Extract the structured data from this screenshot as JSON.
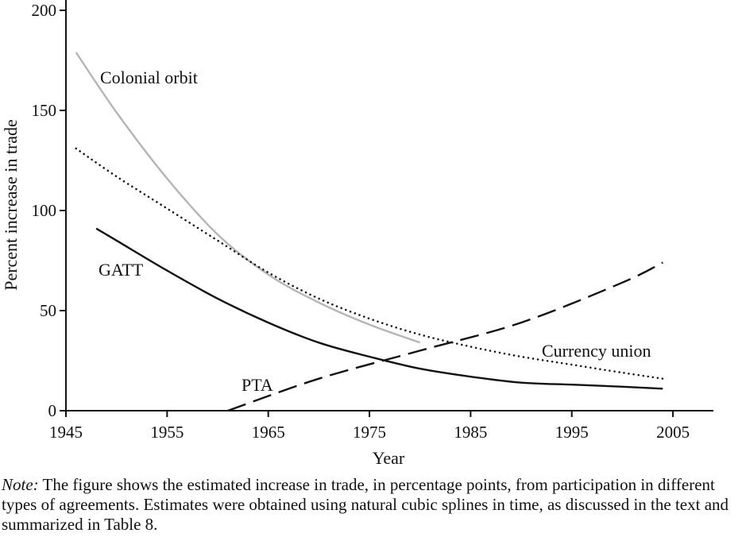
{
  "chart_data": {
    "type": "line",
    "title": "",
    "xlabel": "Year",
    "ylabel": "Percent increase in trade",
    "xlim": [
      1945,
      2009
    ],
    "ylim": [
      0,
      200
    ],
    "x_ticks": [
      1945,
      1955,
      1965,
      1975,
      1985,
      1995,
      2005
    ],
    "y_ticks": [
      0,
      50,
      100,
      150,
      200
    ],
    "grid": false,
    "series": [
      {
        "name": "Colonial orbit",
        "label": "Colonial orbit",
        "style": "solid",
        "color": "#b5b5b5",
        "x": [
          1946,
          1950,
          1955,
          1960,
          1965,
          1970,
          1975,
          1980
        ],
        "y": [
          179,
          149,
          116,
          88,
          68,
          54,
          43,
          34
        ]
      },
      {
        "name": "Currency union",
        "label": "Currency union",
        "style": "dotted",
        "color": "#111111",
        "x": [
          1946,
          1950,
          1955,
          1960,
          1965,
          1970,
          1975,
          1980,
          1985,
          1990,
          1995,
          2000,
          2004
        ],
        "y": [
          131,
          117,
          101,
          85,
          69,
          56,
          46,
          38,
          32,
          27,
          23,
          19,
          16
        ]
      },
      {
        "name": "GATT",
        "label": "GATT",
        "style": "solid",
        "color": "#111111",
        "x": [
          1948,
          1950,
          1955,
          1960,
          1965,
          1970,
          1975,
          1980,
          1985,
          1990,
          1995,
          2000,
          2004
        ],
        "y": [
          91,
          85,
          70,
          56,
          44,
          34,
          27,
          21,
          17,
          14,
          13,
          12,
          11
        ]
      },
      {
        "name": "PTA",
        "label": "PTA",
        "style": "dashed",
        "color": "#111111",
        "x": [
          1961,
          1970,
          1980,
          1990,
          2000,
          2004
        ],
        "y": [
          0,
          16,
          30,
          44,
          64,
          74
        ]
      }
    ]
  },
  "note": {
    "lead": "Note:",
    "text": " The figure shows the estimated increase in trade, in percentage points, from participation in different types of agreements. Estimates were obtained using natural cubic splines in time, as discussed in the text and summarized in Table 8."
  }
}
